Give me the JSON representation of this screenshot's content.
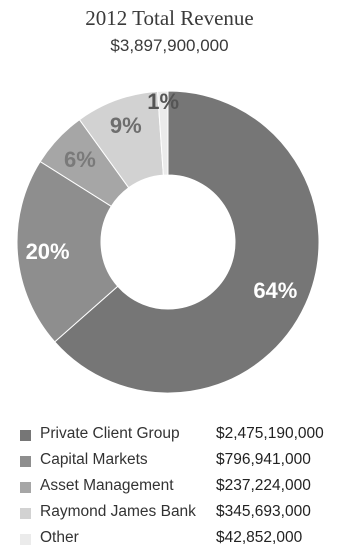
{
  "header": {
    "title": "2012 Total Revenue",
    "subtitle": "$3,897,900,000"
  },
  "chart_data": {
    "type": "pie",
    "variant": "donut",
    "title": "2012 Total Revenue",
    "subtitle": "$3,897,900,000",
    "legend_position": "bottom",
    "slices": [
      {
        "label": "Private Client Group",
        "value": 2475190000,
        "value_label": "$2,475,190,000",
        "percent_label": "64%",
        "color": "#767676",
        "label_color": "#ffffff"
      },
      {
        "label": "Capital Markets",
        "value": 796941000,
        "value_label": "$796,941,000",
        "percent_label": "20%",
        "color": "#8e8e8e",
        "label_color": "#ffffff"
      },
      {
        "label": "Asset Management",
        "value": 237224000,
        "value_label": "$237,224,000",
        "percent_label": "6%",
        "color": "#a6a6a6",
        "label_color": "#7a7a7a"
      },
      {
        "label": "Raymond James Bank",
        "value": 345693000,
        "value_label": "$345,693,000",
        "percent_label": "9%",
        "color": "#d2d2d2",
        "label_color": "#6e6e6e"
      },
      {
        "label": "Other",
        "value": 42852000,
        "value_label": "$42,852,000",
        "percent_label": "1%",
        "color": "#ebebeb",
        "label_color": "#555555"
      }
    ]
  }
}
